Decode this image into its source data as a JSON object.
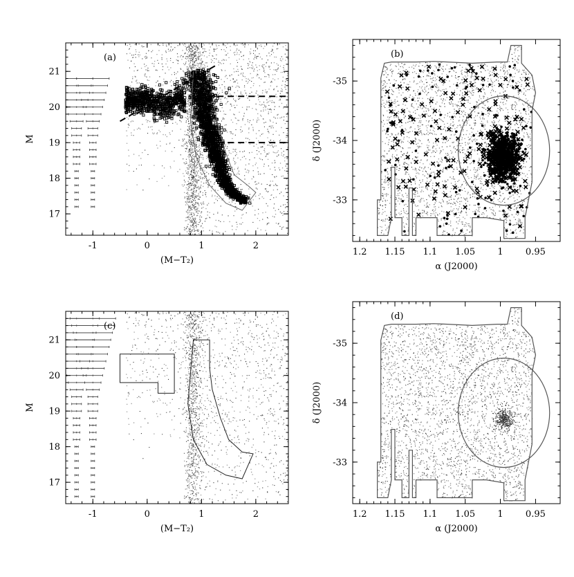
{
  "chart_data": [
    {
      "panel": "(a)",
      "type": "scatter",
      "xlabel": "(M−T₂)",
      "ylabel": "M",
      "xlim": [
        -1.5,
        2.6
      ],
      "ylim": [
        21.8,
        16.4
      ],
      "x_ticks": [
        -1,
        0,
        1,
        2
      ],
      "y_ticks": [
        17,
        18,
        19,
        20,
        21
      ],
      "colors": {
        "field": "#8a8a8a",
        "members": "#000000",
        "selection_box": "#666666"
      },
      "error_bars": {
        "columns_x": [
          -1.3,
          -1.0
        ],
        "M": [
          17.2,
          17.4,
          17.6,
          17.8,
          18.0,
          18.2,
          18.4,
          18.6,
          18.8,
          19.0,
          19.2,
          19.4,
          19.6,
          19.8,
          20.0,
          20.2,
          20.4,
          20.6,
          20.8
        ],
        "sigma_color": [
          0.01,
          0.01,
          0.01,
          0.01,
          0.01,
          0.01,
          0.02,
          0.02,
          0.02,
          0.02,
          0.03,
          0.03,
          0.04,
          0.05,
          0.06,
          0.07,
          0.08,
          0.09,
          0.1
        ],
        "sigma_M": [
          0.01,
          0.01,
          0.01,
          0.01,
          0.01,
          0.01,
          0.01,
          0.02,
          0.02,
          0.02,
          0.02,
          0.03,
          0.03,
          0.04,
          0.04,
          0.05,
          0.06,
          0.07,
          0.08
        ]
      },
      "dashed_lines_M": [
        19.0,
        20.3
      ],
      "dashed_line_x_from": 1.1,
      "diagonal_dashes": [
        [
          -0.5,
          19.6
        ],
        [
          1.3,
          21.2
        ]
      ],
      "rgb_sequence": {
        "M": [
          17.35,
          17.6,
          18.0,
          18.5,
          19.0,
          19.5,
          20.0,
          20.5,
          21.0
        ],
        "color": [
          1.8,
          1.55,
          1.4,
          1.3,
          1.2,
          1.12,
          1.05,
          1.0,
          0.95
        ]
      },
      "horizontal_branch": {
        "color_range": [
          -0.4,
          0.7
        ],
        "M_center": 20.2
      }
    },
    {
      "panel": "(b)",
      "type": "scatter",
      "xlabel": "α (J2000)",
      "ylabel": "δ (J2000)",
      "xlim": [
        1.21,
        0.915
      ],
      "ylim": [
        -35.7,
        -32.3
      ],
      "x_ticks": [
        1.2,
        1.15,
        1.1,
        1.05,
        1.0,
        0.95
      ],
      "x_tick_labels": [
        "1.2",
        "1.15",
        "1.1",
        "1.05",
        "1",
        "0.95"
      ],
      "y_ticks": [
        -33,
        -34,
        -35
      ],
      "tidal_ellipse": {
        "center": [
          0.995,
          -33.83
        ],
        "semi_axes": [
          0.065,
          0.92
        ]
      },
      "concentration_center": [
        0.995,
        -33.72
      ]
    },
    {
      "panel": "(c)",
      "type": "scatter",
      "xlabel": "(M−T₂)",
      "ylabel": "M",
      "xlim": [
        -1.5,
        2.6
      ],
      "ylim": [
        21.8,
        16.4
      ],
      "x_ticks": [
        -1,
        0,
        1,
        2
      ],
      "y_ticks": [
        17,
        18,
        19,
        20,
        21
      ],
      "error_bars": {
        "columns_x": [
          -1.3,
          -1.0
        ],
        "M": [
          16.6,
          16.8,
          17.0,
          17.2,
          17.4,
          17.6,
          17.8,
          18.0,
          18.2,
          18.4,
          18.6,
          18.8,
          19.0,
          19.2,
          19.4,
          19.6,
          19.8,
          20.0,
          20.2,
          20.4,
          20.6,
          20.8,
          21.0,
          21.2,
          21.4,
          21.6
        ],
        "sigma_color": [
          0.01,
          0.01,
          0.01,
          0.01,
          0.01,
          0.01,
          0.01,
          0.01,
          0.02,
          0.02,
          0.02,
          0.02,
          0.03,
          0.03,
          0.03,
          0.04,
          0.05,
          0.06,
          0.07,
          0.08,
          0.09,
          0.1,
          0.11,
          0.12,
          0.13,
          0.14
        ],
        "sigma_M": [
          0.01,
          0.01,
          0.01,
          0.01,
          0.01,
          0.01,
          0.01,
          0.01,
          0.01,
          0.01,
          0.02,
          0.02,
          0.02,
          0.02,
          0.03,
          0.03,
          0.04,
          0.04,
          0.05,
          0.05,
          0.06,
          0.07,
          0.08,
          0.09,
          0.1,
          0.11
        ]
      },
      "rgb_selection_outline": [
        [
          0.85,
          21.0
        ],
        [
          0.75,
          19.2
        ],
        [
          0.85,
          18.2
        ],
        [
          1.1,
          17.5
        ],
        [
          1.45,
          17.2
        ],
        [
          1.75,
          17.1
        ],
        [
          1.95,
          17.8
        ],
        [
          1.75,
          17.85
        ],
        [
          1.5,
          18.2
        ],
        [
          1.35,
          18.8
        ],
        [
          1.2,
          19.6
        ],
        [
          1.15,
          20.2
        ],
        [
          1.15,
          21.0
        ]
      ],
      "hb_selection_box": [
        [
          -0.5,
          19.8
        ],
        [
          0.2,
          19.8
        ],
        [
          0.2,
          19.5
        ],
        [
          0.5,
          19.5
        ],
        [
          0.5,
          20.6
        ],
        [
          -0.5,
          20.6
        ]
      ]
    },
    {
      "panel": "(d)",
      "type": "scatter",
      "xlabel": "α (J2000)",
      "ylabel": "δ (J2000)",
      "xlim": [
        1.21,
        0.915
      ],
      "ylim": [
        -35.7,
        -32.3
      ],
      "x_ticks": [
        1.2,
        1.15,
        1.1,
        1.05,
        1.0,
        0.95
      ],
      "x_tick_labels": [
        "1.2",
        "1.15",
        "1.1",
        "1.05",
        "1",
        "0.95"
      ],
      "y_ticks": [
        -33,
        -34,
        -35
      ],
      "tidal_ellipse": {
        "center": [
          0.995,
          -33.83
        ],
        "semi_axes": [
          0.065,
          0.92
        ]
      },
      "concentration_center": [
        0.995,
        -33.72
      ]
    }
  ],
  "survey_footprint": [
    [
      1.175,
      -32.4
    ],
    [
      1.175,
      -33.0
    ],
    [
      1.17,
      -33.0
    ],
    [
      1.17,
      -35.05
    ],
    [
      1.165,
      -35.3
    ],
    [
      1.155,
      -35.32
    ],
    [
      1.12,
      -35.32
    ],
    [
      1.095,
      -35.33
    ],
    [
      1.075,
      -35.32
    ],
    [
      1.04,
      -35.3
    ],
    [
      1.005,
      -35.32
    ],
    [
      0.99,
      -35.32
    ],
    [
      0.985,
      -35.6
    ],
    [
      0.97,
      -35.6
    ],
    [
      0.97,
      -35.3
    ],
    [
      0.955,
      -35.1
    ],
    [
      0.95,
      -34.8
    ],
    [
      0.955,
      -34.5
    ],
    [
      0.955,
      -33.3
    ],
    [
      0.96,
      -33.0
    ],
    [
      0.965,
      -32.7
    ],
    [
      0.965,
      -32.35
    ],
    [
      0.995,
      -32.35
    ],
    [
      0.995,
      -32.65
    ],
    [
      1.02,
      -32.7
    ],
    [
      1.04,
      -32.7
    ],
    [
      1.04,
      -32.4
    ],
    [
      1.09,
      -32.4
    ],
    [
      1.09,
      -32.7
    ],
    [
      1.12,
      -32.7
    ],
    [
      1.12,
      -32.4
    ],
    [
      1.125,
      -32.4
    ],
    [
      1.125,
      -33.2
    ],
    [
      1.13,
      -33.2
    ],
    [
      1.13,
      -32.4
    ],
    [
      1.14,
      -32.4
    ],
    [
      1.14,
      -32.7
    ],
    [
      1.15,
      -32.7
    ],
    [
      1.15,
      -33.55
    ],
    [
      1.155,
      -33.55
    ],
    [
      1.155,
      -32.7
    ],
    [
      1.16,
      -32.4
    ]
  ]
}
